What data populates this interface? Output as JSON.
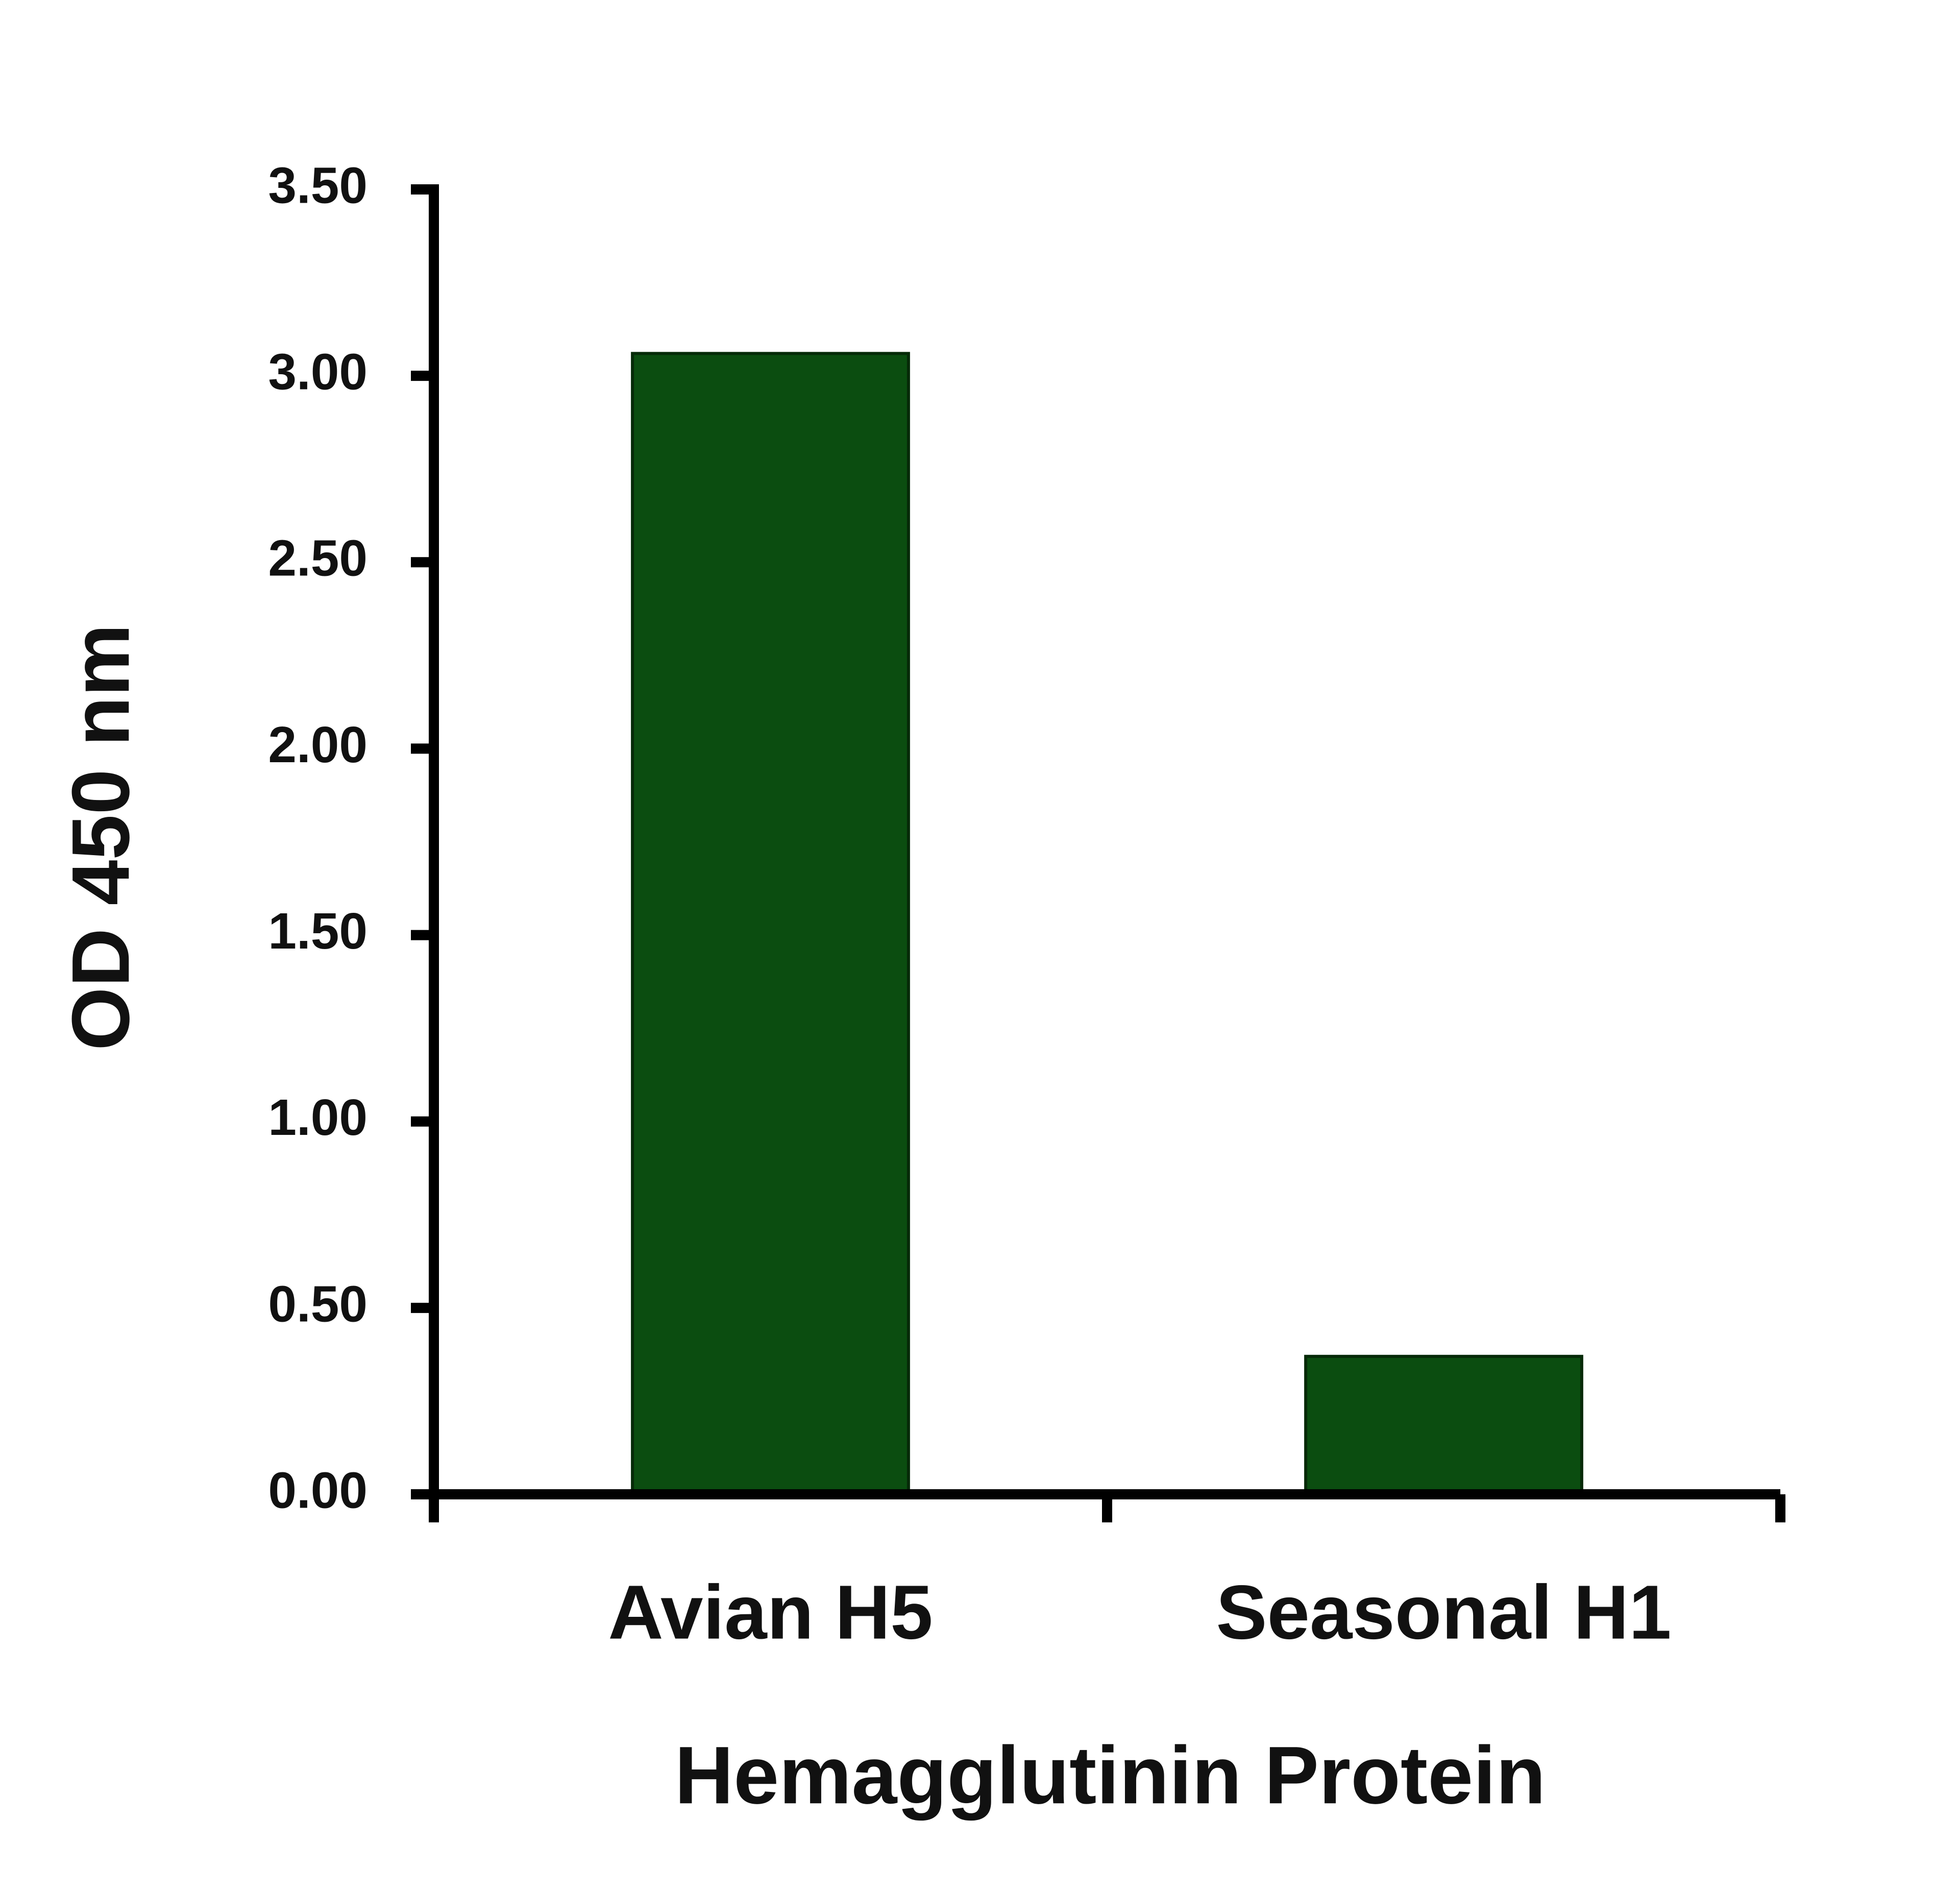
{
  "chart_data": {
    "type": "bar",
    "categories": [
      "Avian H5",
      "Seasonal H1"
    ],
    "values": [
      3.06,
      0.37
    ],
    "color": "#0b4d10",
    "xlabel": "Hemagglutinin Protein",
    "ylabel": "OD 450 nm",
    "ylim": [
      0,
      3.5
    ],
    "yticks": [
      {
        "value": 0,
        "label": "0.00"
      },
      {
        "value": 0.5,
        "label": "0.50"
      },
      {
        "value": 1,
        "label": "1.00"
      },
      {
        "value": 1.5,
        "label": "1.50"
      },
      {
        "value": 2,
        "label": "2.00"
      },
      {
        "value": 2.5,
        "label": "2.50"
      },
      {
        "value": 3,
        "label": "3.00"
      },
      {
        "value": 3.5,
        "label": "3.50"
      }
    ],
    "grid": false
  }
}
